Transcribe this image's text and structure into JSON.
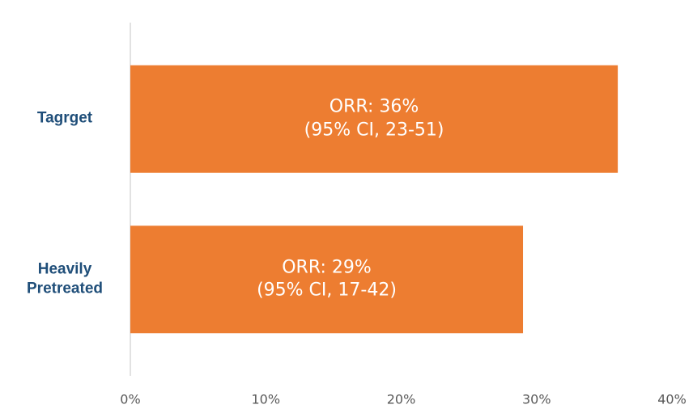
{
  "chart_data": {
    "type": "bar",
    "orientation": "horizontal",
    "categories": [
      "Tagrget",
      "Heavily\nPretreated"
    ],
    "values": [
      36,
      29
    ],
    "value_labels": [
      "ORR: 36%\n(95% CI, 23-51)",
      "ORR: 29%\n(95% CI, 17-42)"
    ],
    "color": "#ed7d31",
    "xlim": [
      0,
      40
    ],
    "xticks": [
      {
        "value": 0,
        "label": "0%"
      },
      {
        "value": 10,
        "label": "10%"
      },
      {
        "value": 20,
        "label": "20%"
      },
      {
        "value": 30,
        "label": "30%"
      },
      {
        "value": 40,
        "label": "40%"
      }
    ],
    "grid": false
  }
}
